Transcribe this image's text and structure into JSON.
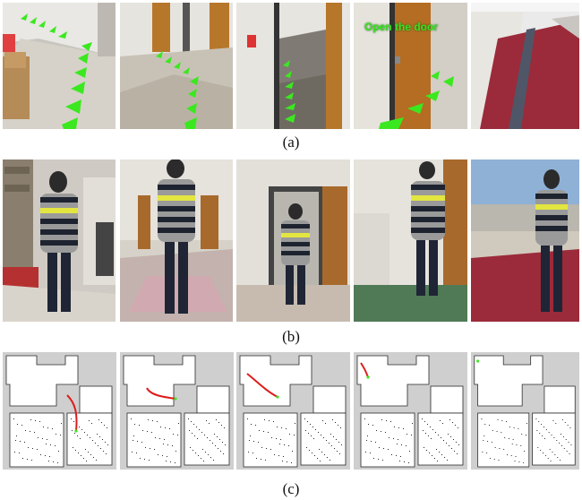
{
  "figure": {
    "captions": {
      "a": "(a)",
      "b": "(b)",
      "c": "(c)"
    },
    "row_a": {
      "overlay_instruction": "Open the door"
    },
    "colors": {
      "guide_arrow": "#3be81f",
      "path_line": "#dd1d1d",
      "map_background": "#cfcfcf",
      "floor_free": "#ffffff",
      "wall": "#2a2a2a"
    }
  }
}
